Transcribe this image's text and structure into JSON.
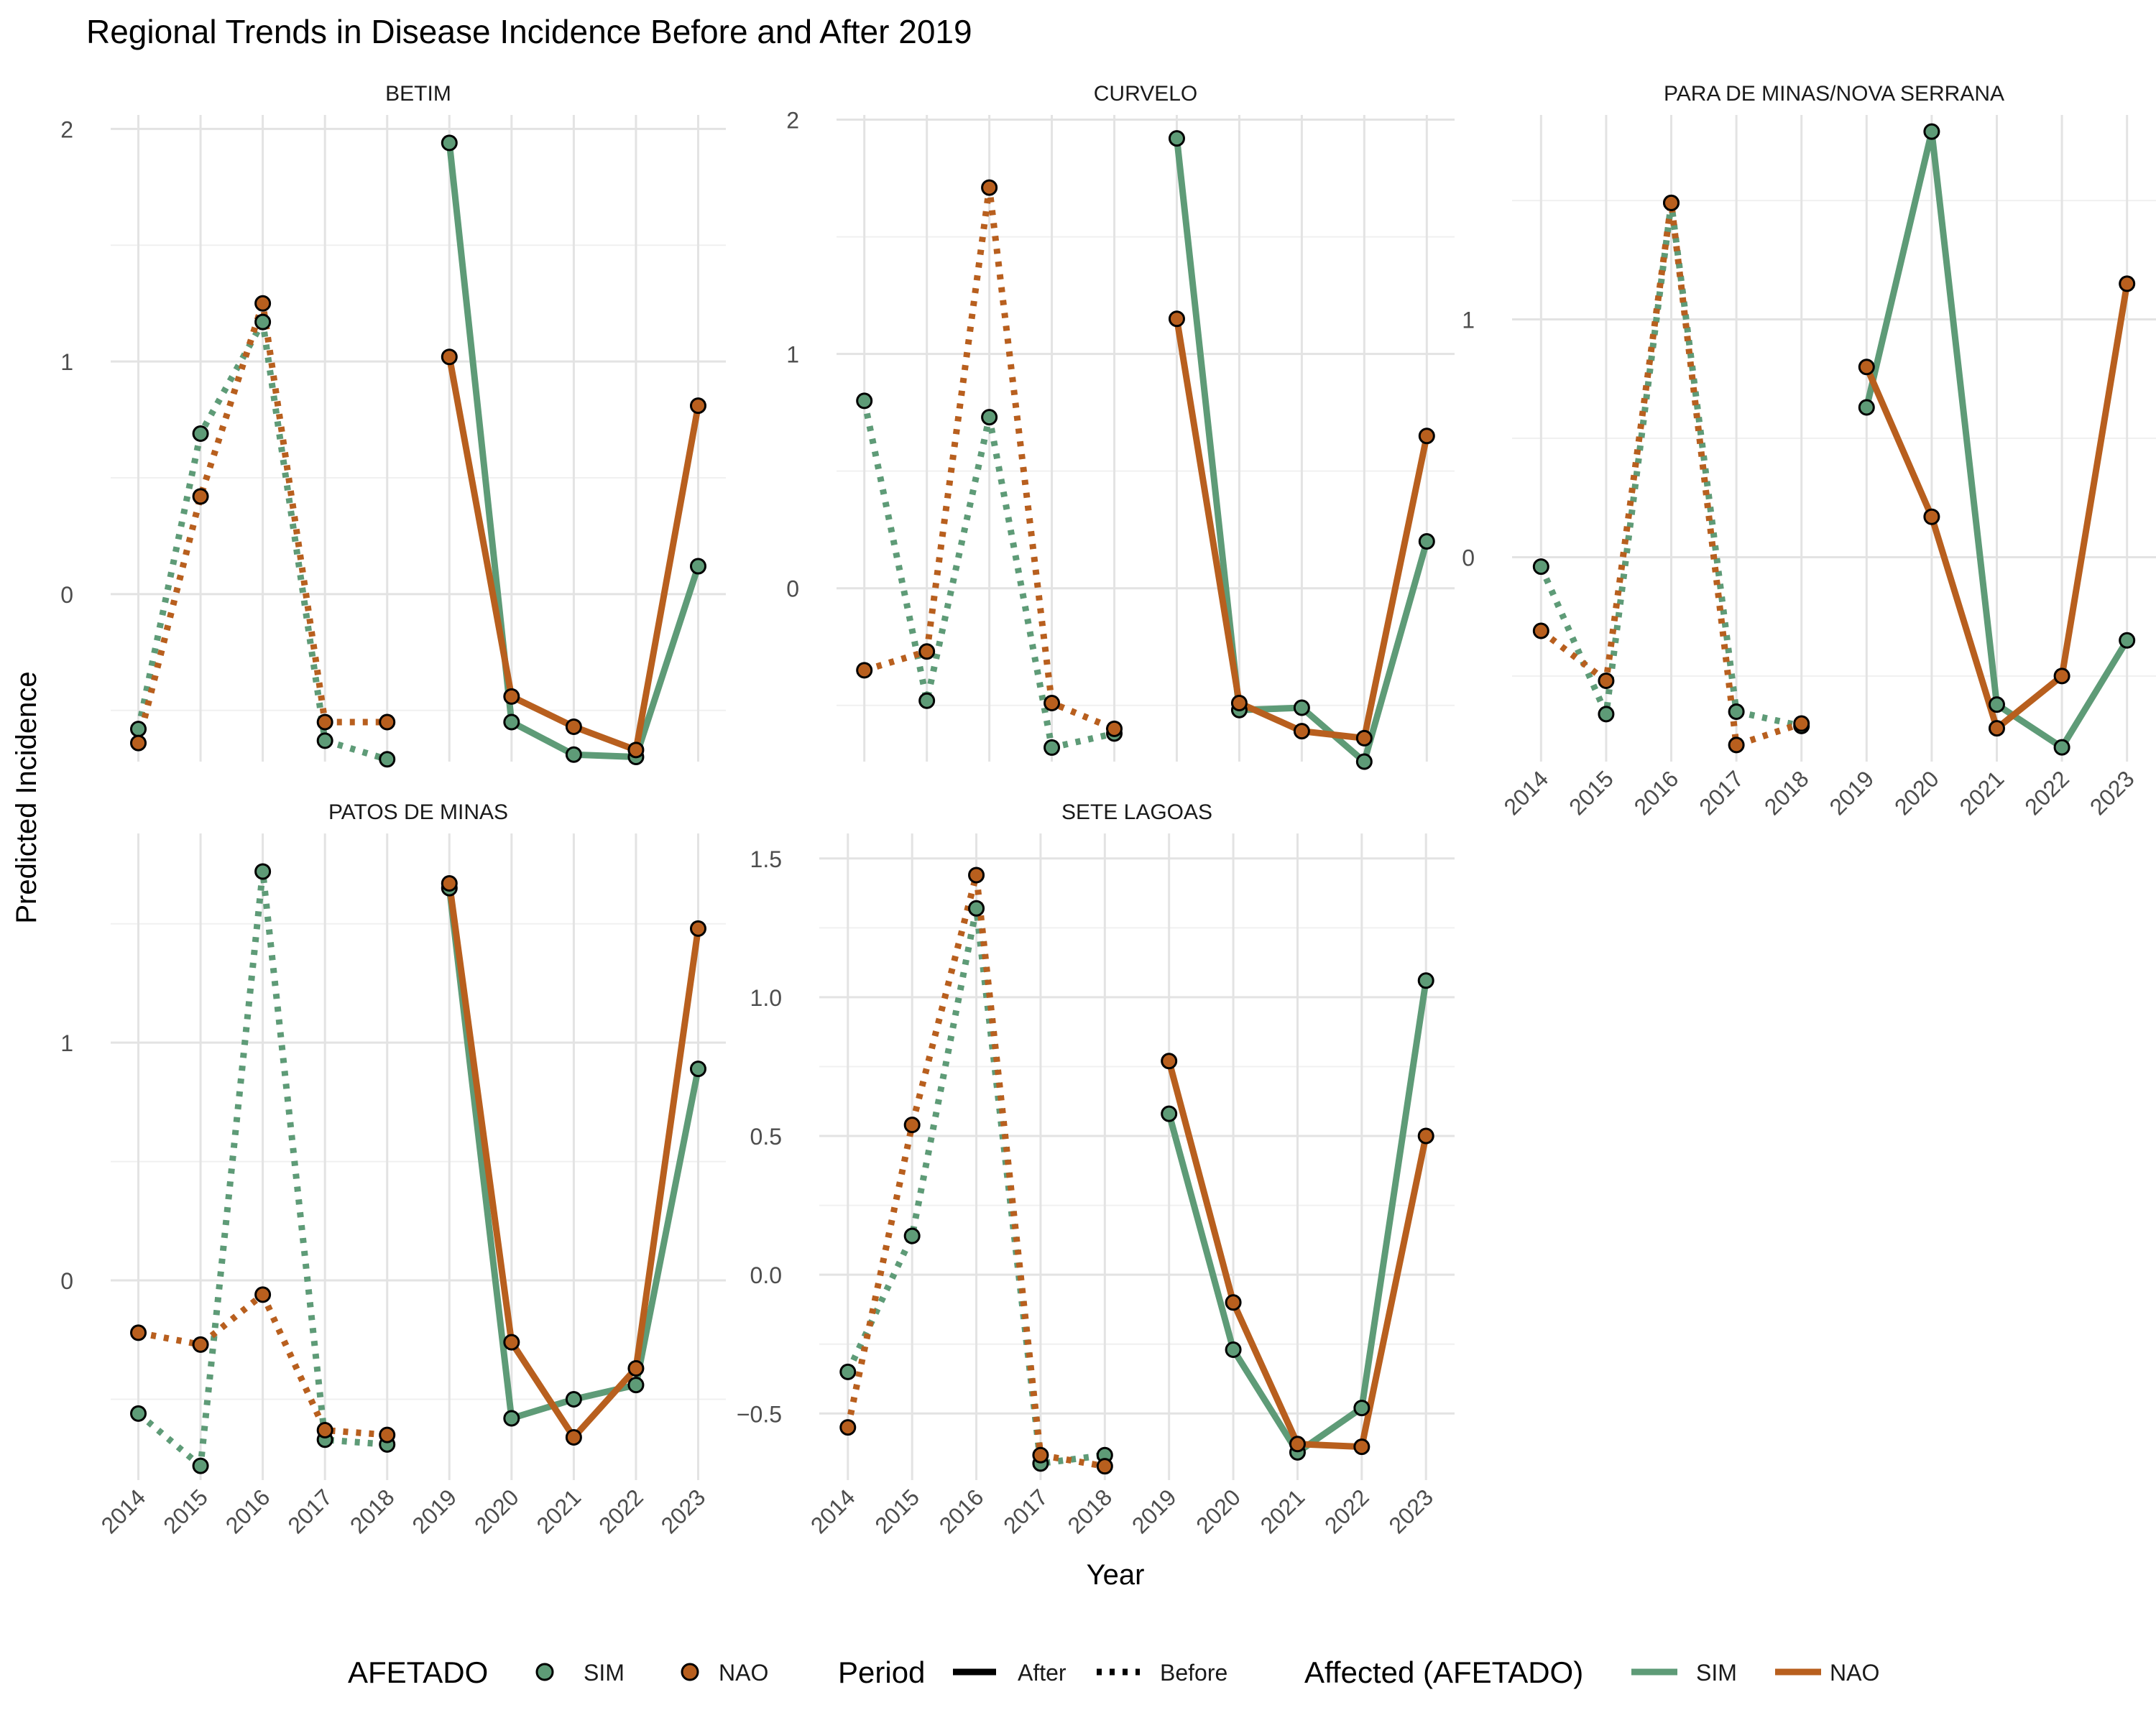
{
  "chart_data": {
    "type": "line",
    "title": "Regional Trends in Disease Incidence Before and After 2019",
    "xlabel": "Year",
    "ylabel": "Predicted Incidence",
    "x": [
      2014,
      2015,
      2016,
      2017,
      2018,
      2019,
      2020,
      2021,
      2022,
      2023
    ],
    "x_tick_labels": [
      "2014",
      "2015",
      "2016",
      "2017",
      "2018",
      "2019",
      "2020",
      "2021",
      "2022",
      "2023"
    ],
    "colors": {
      "SIM": "#5e9b77",
      "NAO": "#b85f1e"
    },
    "grid": true,
    "legend_position": "bottom",
    "legend": {
      "point_title": "AFETADO",
      "period_title": "Period",
      "line_title": "Affected (AFETADO)",
      "groups": [
        "SIM",
        "NAO"
      ],
      "periods": [
        "After",
        "Before"
      ]
    },
    "panels": [
      {
        "name": "BETIM",
        "ylim": [
          -0.72,
          2.06
        ],
        "y_ticks": [
          0,
          1,
          2
        ],
        "y_tick_labels": [
          "0",
          "1",
          "2"
        ],
        "series": [
          {
            "name": "SIM",
            "values": [
              -0.58,
              0.69,
              1.17,
              -0.63,
              -0.71,
              1.94,
              -0.55,
              -0.69,
              -0.7,
              0.12
            ]
          },
          {
            "name": "NAO",
            "values": [
              -0.64,
              0.42,
              1.25,
              -0.55,
              -0.55,
              1.02,
              -0.44,
              -0.57,
              -0.67,
              0.81
            ]
          }
        ]
      },
      {
        "name": "CURVELO",
        "ylim": [
          -0.74,
          2.02
        ],
        "y_ticks": [
          0,
          1,
          2
        ],
        "y_tick_labels": [
          "0",
          "1",
          "2"
        ],
        "series": [
          {
            "name": "SIM",
            "values": [
              0.8,
              -0.48,
              0.73,
              -0.68,
              -0.62,
              1.92,
              -0.52,
              -0.51,
              -0.74,
              0.2
            ]
          },
          {
            "name": "NAO",
            "values": [
              -0.35,
              -0.27,
              1.71,
              -0.49,
              -0.6,
              1.15,
              -0.49,
              -0.61,
              -0.64,
              0.65
            ]
          }
        ]
      },
      {
        "name": "PARA DE MINAS/NOVA SERRANA",
        "ylim": [
          -0.86,
          1.86
        ],
        "y_ticks": [
          0,
          1
        ],
        "y_tick_labels": [
          "0",
          "1"
        ],
        "series": [
          {
            "name": "SIM",
            "values": [
              -0.04,
              -0.66,
              1.49,
              -0.65,
              -0.71,
              0.63,
              1.79,
              -0.62,
              -0.8,
              -0.35
            ]
          },
          {
            "name": "NAO",
            "values": [
              -0.31,
              -0.52,
              1.49,
              -0.79,
              -0.7,
              0.8,
              0.17,
              -0.72,
              -0.5,
              1.15
            ]
          }
        ]
      },
      {
        "name": "PATOS DE MINAS",
        "ylim": [
          -0.84,
          1.88
        ],
        "y_ticks": [
          0,
          1
        ],
        "y_tick_labels": [
          "0",
          "1"
        ],
        "series": [
          {
            "name": "SIM",
            "values": [
              -0.56,
              -0.78,
              1.72,
              -0.67,
              -0.69,
              1.65,
              -0.58,
              -0.5,
              -0.44,
              0.89
            ]
          },
          {
            "name": "NAO",
            "values": [
              -0.22,
              -0.27,
              -0.06,
              -0.63,
              -0.65,
              1.67,
              -0.26,
              -0.66,
              -0.37,
              1.48
            ]
          }
        ]
      },
      {
        "name": "SETE LAGOAS",
        "ylim": [
          -0.74,
          1.59
        ],
        "y_ticks": [
          -0.5,
          0,
          0.5,
          1,
          1.5
        ],
        "y_tick_labels": [
          "−0.5",
          "0.0",
          "0.5",
          "1.0",
          "1.5"
        ],
        "series": [
          {
            "name": "SIM",
            "values": [
              -0.35,
              0.14,
              1.32,
              -0.68,
              -0.65,
              0.58,
              -0.27,
              -0.64,
              -0.48,
              1.06
            ]
          },
          {
            "name": "NAO",
            "values": [
              -0.55,
              0.54,
              1.44,
              -0.65,
              -0.69,
              0.77,
              -0.1,
              -0.61,
              -0.62,
              0.5
            ]
          }
        ]
      }
    ]
  }
}
